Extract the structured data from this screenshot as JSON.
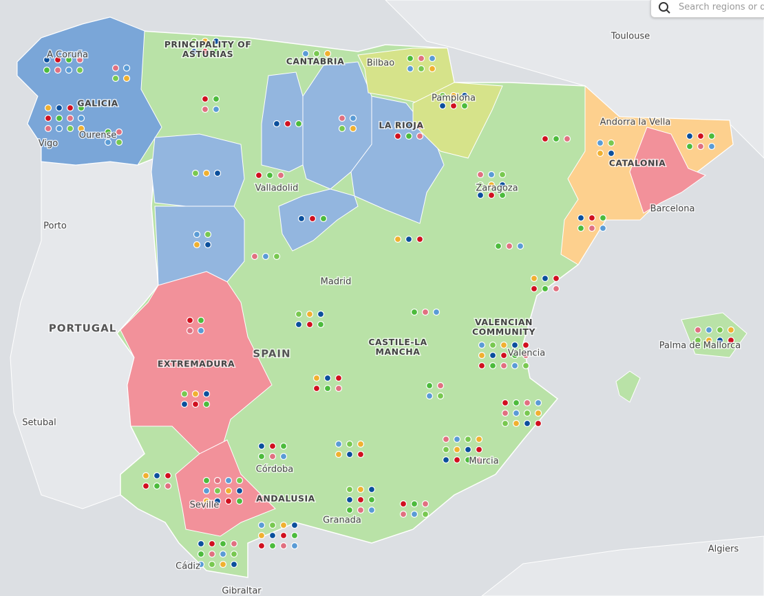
{
  "search": {
    "placeholder": "Search regions or di"
  },
  "countries": [
    "PORTUGAL",
    "SPAIN"
  ],
  "regions": [
    "GALICIA",
    "PRINCIPALITY OF ASTURIAS",
    "CANTABRIA",
    "LA RIOJA",
    "CATALONIA",
    "EXTREMADURA",
    "CASTILE-LA MANCHA",
    "VALENCIAN COMMUNITY",
    "ANDALUSIA"
  ],
  "cities": [
    "A Coruña",
    "Vigo",
    "Ourense",
    "Bilbao",
    "Pamplona",
    "Toulouse",
    "Andorra la Vella",
    "Barcelona",
    "Valladolid",
    "Zaragoza",
    "Porto",
    "Madrid",
    "Valencia",
    "Palma de Mallorca",
    "Setubal",
    "Córdoba",
    "Seville",
    "Granada",
    "Murcia",
    "Cádiz",
    "Gibraltar",
    "Algiers"
  ]
}
